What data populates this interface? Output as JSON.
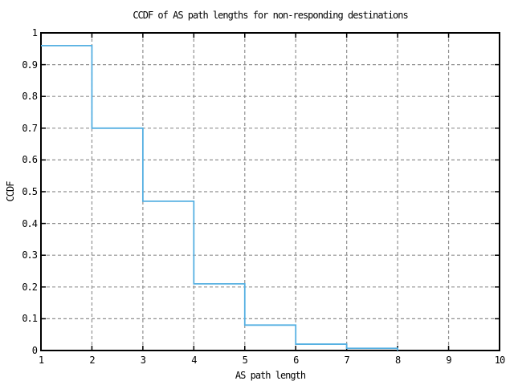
{
  "chart_data": {
    "type": "line",
    "style": "steps",
    "title": "CCDF of AS path lengths for non-responding destinations",
    "xlabel": "AS path length",
    "ylabel": "CCDF",
    "xlim": [
      1,
      10
    ],
    "ylim": [
      0,
      1
    ],
    "x_ticks": [
      "1",
      "2",
      "3",
      "4",
      "5",
      "6",
      "7",
      "8",
      "9",
      "10"
    ],
    "x_tick_values": [
      1,
      2,
      3,
      4,
      5,
      6,
      7,
      8,
      9,
      10
    ],
    "y_ticks": [
      "0",
      "0.1",
      "0.2",
      "0.3",
      "0.4",
      "0.5",
      "0.6",
      "0.7",
      "0.8",
      "0.9",
      "1"
    ],
    "y_tick_values": [
      0,
      0.1,
      0.2,
      0.3,
      0.4,
      0.5,
      0.6,
      0.7,
      0.8,
      0.9,
      1
    ],
    "grid": true,
    "legend": "none",
    "points": [
      {
        "x": 1,
        "y": 0.96
      },
      {
        "x": 2,
        "y": 0.7
      },
      {
        "x": 3,
        "y": 0.47
      },
      {
        "x": 4,
        "y": 0.21
      },
      {
        "x": 5,
        "y": 0.08
      },
      {
        "x": 6,
        "y": 0.02
      },
      {
        "x": 7,
        "y": 0.007
      },
      {
        "x": 8,
        "y": 0
      }
    ],
    "colors": {
      "line": "#56b0e2",
      "grid": "#909090",
      "axis": "#000000",
      "background": "#ffffff"
    }
  }
}
